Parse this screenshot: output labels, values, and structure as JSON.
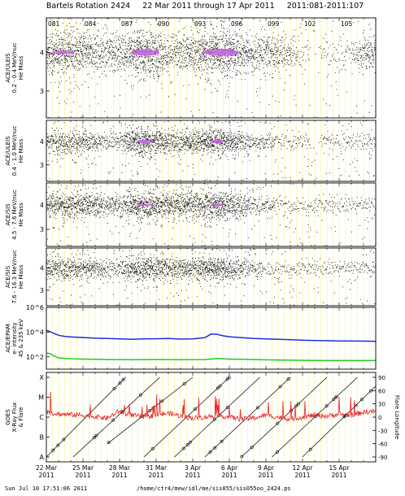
{
  "header": {
    "title": "Bartels Rotation 2424     22 Mar 2011 through 17 Apr 2011     2011:081-2011:107"
  },
  "footer": {
    "timestamp": "Sun Jul 10 17:51:06 2011",
    "path": "/home/ctr4/mew/idl/me/sis055/sis055oo_2424.ps"
  },
  "colors": {
    "grid_yellow": "#f5f08a",
    "density_high": "#c060e0",
    "flux_blue": "#1a2ee0",
    "flux_green": "#22cc22",
    "xray_red": "#ee2222"
  },
  "chart_data": [
    {
      "type": "scatter",
      "panel": "ACE/ULEIS 0.2-0.4 MeV/nuc He Mass",
      "ylabel": [
        "ACE/ULEIS",
        "0.2 - 0.4 MeV/nuc",
        "He Mass"
      ],
      "yticks": [
        "4",
        "3"
      ],
      "ylim": [
        2.3,
        4.9
      ],
      "doy_ticks": [
        "081",
        "084",
        "087",
        "090",
        "093",
        "096",
        "099",
        "102",
        "105"
      ],
      "xlim": [
        81,
        108
      ],
      "band_center": 4.0,
      "activity": [
        [
          81,
          0.8
        ],
        [
          82,
          0.9
        ],
        [
          84,
          0.8
        ],
        [
          85,
          0.6
        ],
        [
          86,
          0.5
        ],
        [
          87,
          0.5
        ],
        [
          88,
          0.9
        ],
        [
          89,
          1.0
        ],
        [
          90,
          0.9
        ],
        [
          91,
          0.5
        ],
        [
          92,
          0.6
        ],
        [
          93,
          0.7
        ],
        [
          94,
          0.9
        ],
        [
          95,
          1.0
        ],
        [
          96,
          1.0
        ],
        [
          97,
          0.7
        ],
        [
          98,
          0.6
        ],
        [
          99,
          0.6
        ],
        [
          100,
          0.5
        ],
        [
          101,
          0.4
        ],
        [
          102,
          0.1
        ],
        [
          103,
          0.05
        ],
        [
          104,
          0.1
        ],
        [
          105,
          0.2
        ],
        [
          106,
          0.2
        ],
        [
          107,
          0.5
        ],
        [
          108,
          0.6
        ]
      ]
    },
    {
      "type": "scatter",
      "panel": "ACE/ULEIS 0.4-1.0 MeV/nuc He Mass",
      "ylabel": [
        "ACE/ULEIS",
        "0.4 - 1.0 MeV/nuc",
        "He Mass"
      ],
      "yticks": [
        "4",
        "3"
      ],
      "ylim": [
        2.3,
        4.9
      ],
      "xlim": [
        81,
        108
      ],
      "band_center": 4.0,
      "activity": [
        [
          81,
          0.4
        ],
        [
          82,
          0.6
        ],
        [
          84,
          0.6
        ],
        [
          85,
          0.4
        ],
        [
          86,
          0.3
        ],
        [
          87,
          0.3
        ],
        [
          88,
          0.8
        ],
        [
          89,
          0.9
        ],
        [
          90,
          0.8
        ],
        [
          91,
          0.6
        ],
        [
          92,
          0.6
        ],
        [
          93,
          0.7
        ],
        [
          94,
          0.8
        ],
        [
          95,
          0.9
        ],
        [
          96,
          0.7
        ],
        [
          97,
          0.5
        ],
        [
          98,
          0.3
        ],
        [
          99,
          0.25
        ],
        [
          100,
          0.2
        ],
        [
          101,
          0.2
        ],
        [
          102,
          0.1
        ],
        [
          103,
          0.05
        ],
        [
          104,
          0.1
        ],
        [
          105,
          0.15
        ],
        [
          106,
          0.2
        ],
        [
          107,
          0.2
        ],
        [
          108,
          0.2
        ]
      ]
    },
    {
      "type": "scatter",
      "panel": "ACE/SIS 4.5-7.6 MeV/nuc He Mass",
      "ylabel": [
        "ACE/SIS",
        "4.5 - 7.6 MeV/nuc",
        "He Mass"
      ],
      "yticks": [
        "4",
        "3"
      ],
      "ylim": [
        2.3,
        4.9
      ],
      "xlim": [
        81,
        108
      ],
      "band_center": 4.0,
      "activity": [
        [
          81,
          0.6
        ],
        [
          82,
          0.7
        ],
        [
          84,
          0.7
        ],
        [
          85,
          0.6
        ],
        [
          86,
          0.4
        ],
        [
          87,
          0.4
        ],
        [
          88,
          0.8
        ],
        [
          89,
          0.9
        ],
        [
          90,
          0.8
        ],
        [
          91,
          0.7
        ],
        [
          92,
          0.7
        ],
        [
          93,
          0.7
        ],
        [
          94,
          0.8
        ],
        [
          95,
          0.9
        ],
        [
          96,
          0.7
        ],
        [
          97,
          0.5
        ],
        [
          98,
          0.3
        ],
        [
          99,
          0.25
        ],
        [
          100,
          0.2
        ],
        [
          101,
          0.15
        ],
        [
          102,
          0.1
        ],
        [
          103,
          0.1
        ],
        [
          104,
          0.1
        ],
        [
          105,
          0.1
        ],
        [
          106,
          0.1
        ],
        [
          107,
          0.1
        ],
        [
          108,
          0.1
        ]
      ]
    },
    {
      "type": "scatter",
      "panel": "ACE/SIS 7.6-16.3 MeV/nuc He Mass",
      "ylabel": [
        "ACE/SIS",
        "7.6 - 16.3 MeV/nuc",
        "He Mass"
      ],
      "yticks": [
        "4",
        "3"
      ],
      "ylim": [
        2.3,
        4.9
      ],
      "xlim": [
        81,
        108
      ],
      "band_center": 4.0,
      "activity": [
        [
          81,
          0.5
        ],
        [
          82,
          0.6
        ],
        [
          84,
          0.6
        ],
        [
          85,
          0.5
        ],
        [
          86,
          0.3
        ],
        [
          87,
          0.3
        ],
        [
          88,
          0.7
        ],
        [
          89,
          0.8
        ],
        [
          90,
          0.7
        ],
        [
          91,
          0.6
        ],
        [
          92,
          0.6
        ],
        [
          93,
          0.6
        ],
        [
          94,
          0.7
        ],
        [
          95,
          0.8
        ],
        [
          96,
          0.6
        ],
        [
          97,
          0.4
        ],
        [
          98,
          0.25
        ],
        [
          99,
          0.2
        ],
        [
          100,
          0.15
        ],
        [
          101,
          0.15
        ],
        [
          102,
          0.1
        ],
        [
          103,
          0.1
        ],
        [
          104,
          0.1
        ],
        [
          105,
          0.1
        ],
        [
          106,
          0.1
        ],
        [
          107,
          0.1
        ],
        [
          108,
          0.1
        ]
      ]
    },
    {
      "type": "line",
      "panel": "ACE/EPAM e- intensity 45 & 235 keV",
      "ylabel": [
        "ACE/EPAM",
        "e- intensity",
        "45 & 235 keV"
      ],
      "log_y": true,
      "ylim": [
        10,
        1000000
      ],
      "yticks": [
        "10^6",
        "10^4",
        "10^2"
      ],
      "xlim": [
        81,
        108
      ],
      "series": [
        {
          "name": "45 keV",
          "color": "#1a2ee0",
          "x": [
            81,
            81.3,
            81.6,
            82,
            82.5,
            83,
            84,
            85,
            86,
            87,
            88,
            89,
            90,
            91,
            92,
            93,
            94,
            94.5,
            95,
            95.5,
            96,
            97,
            98,
            99,
            100,
            101,
            102,
            103,
            104,
            105,
            106,
            107,
            108
          ],
          "y": [
            14000,
            11000,
            8000,
            5500,
            4500,
            4000,
            3600,
            3200,
            3000,
            2800,
            2600,
            2800,
            2900,
            3000,
            2700,
            2800,
            3500,
            7000,
            6500,
            5000,
            4200,
            3500,
            3000,
            2800,
            2600,
            2400,
            2200,
            2100,
            2000,
            1900,
            1900,
            1850,
            1800
          ]
        },
        {
          "name": "235 keV",
          "color": "#22cc22",
          "x": [
            81,
            81.3,
            81.6,
            82,
            83,
            84,
            86,
            88,
            90,
            92,
            94,
            95,
            96,
            98,
            100,
            102,
            104,
            106,
            108
          ],
          "y": [
            200,
            180,
            120,
            80,
            70,
            65,
            60,
            58,
            60,
            58,
            60,
            72,
            65,
            60,
            55,
            52,
            50,
            50,
            50
          ]
        }
      ]
    },
    {
      "type": "line",
      "panel": "GOES X-Ray Flux & Flare Longitude",
      "ylabel": [
        "GOES",
        "X-Ray Flux",
        "& Flare"
      ],
      "ylabel_right": "Flare Longitude",
      "yticks_left": [
        "X",
        "M",
        "C",
        "B",
        "A"
      ],
      "yticks_right": [
        "90",
        "60",
        "30",
        "0",
        "-30",
        "-60",
        "-90"
      ],
      "xlim": [
        81,
        108
      ],
      "xray_level": [
        [
          81,
          2.25
        ],
        [
          82,
          2.15
        ],
        [
          84,
          2.1
        ],
        [
          86,
          1.95
        ],
        [
          87,
          2.3
        ],
        [
          88,
          2.1
        ],
        [
          89,
          2.0
        ],
        [
          90,
          2.1
        ],
        [
          91,
          2.2
        ],
        [
          92,
          2.05
        ],
        [
          93,
          1.95
        ],
        [
          94,
          2.0
        ],
        [
          95,
          2.1
        ],
        [
          96,
          2.0
        ],
        [
          97,
          1.9
        ],
        [
          98,
          1.95
        ],
        [
          99,
          2.1
        ],
        [
          100,
          2.0
        ],
        [
          101,
          1.9
        ],
        [
          102,
          2.0
        ],
        [
          103,
          2.1
        ],
        [
          104,
          2.05
        ],
        [
          105,
          2.15
        ],
        [
          106,
          2.1
        ],
        [
          107,
          2.25
        ],
        [
          108,
          2.3
        ]
      ],
      "longitude_tracks": [
        {
          "start": [
            81.0,
            -90
          ],
          "end": [
            87.5,
            90
          ]
        },
        {
          "start": [
            83.2,
            -90
          ],
          "end": [
            90.3,
            90
          ]
        },
        {
          "start": [
            86.0,
            -60
          ],
          "end": [
            93.0,
            90
          ]
        },
        {
          "start": [
            89.0,
            -90
          ],
          "end": [
            96.0,
            90
          ]
        },
        {
          "start": [
            91.5,
            -90
          ],
          "end": [
            98.5,
            90
          ]
        },
        {
          "start": [
            94.0,
            -90
          ],
          "end": [
            101.0,
            90
          ]
        },
        {
          "start": [
            97.0,
            -90
          ],
          "end": [
            104.0,
            90
          ]
        },
        {
          "start": [
            99.5,
            -90
          ],
          "end": [
            106.5,
            90
          ]
        },
        {
          "start": [
            102.0,
            -90
          ],
          "end": [
            108.0,
            70
          ]
        }
      ]
    }
  ],
  "x_axis": {
    "date_ticks": [
      {
        "day": "22 Mar",
        "year": "2011",
        "doy": 81
      },
      {
        "day": "25 Mar",
        "year": "2011",
        "doy": 84
      },
      {
        "day": "28 Mar",
        "year": "2011",
        "doy": 87
      },
      {
        "day": "31 Mar",
        "year": "2011",
        "doy": 90
      },
      {
        "day": "3 Apr",
        "year": "2011",
        "doy": 93
      },
      {
        "day": "6 Apr",
        "year": "2011",
        "doy": 96
      },
      {
        "day": "9 Apr",
        "year": "2011",
        "doy": 99
      },
      {
        "day": "12 Apr",
        "year": "2011",
        "doy": 102
      },
      {
        "day": "15 Apr",
        "year": "2011",
        "doy": 105
      }
    ]
  }
}
